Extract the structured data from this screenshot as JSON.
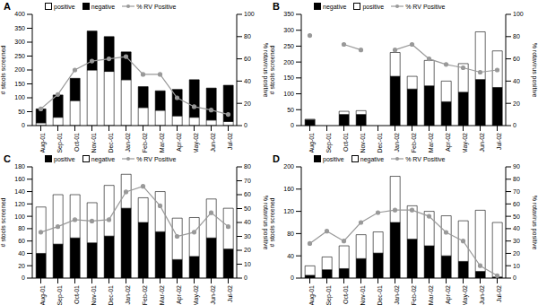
{
  "chart_data": [
    {
      "type": "bar",
      "title": "A",
      "stacked": true,
      "ylabel": "# stools screened",
      "y2label": "% rotavirus positive",
      "categories": [
        "Aug-01",
        "Sep-01",
        "Oct-01",
        "Nov-01",
        "Dec-01",
        "Jan-02",
        "Feb-02",
        "Mar-02",
        "Apr-02",
        "May-02",
        "Jun-02",
        "Jul-02"
      ],
      "ylim": [
        0,
        400
      ],
      "yticks": [
        0,
        50,
        100,
        150,
        200,
        250,
        300,
        350,
        400
      ],
      "y2lim": [
        0,
        100
      ],
      "y2ticks": [
        0,
        10,
        20,
        30,
        40,
        50,
        60,
        70,
        80,
        90,
        100
      ],
      "series": [
        {
          "name": "positive",
          "type": "bar",
          "color": "#ffffff",
          "values": [
            10,
            30,
            90,
            200,
            195,
            165,
            65,
            55,
            35,
            30,
            20,
            15
          ]
        },
        {
          "name": "negative",
          "type": "bar",
          "color": "#000000",
          "values": [
            50,
            80,
            80,
            140,
            125,
            100,
            75,
            70,
            95,
            135,
            115,
            130
          ]
        },
        {
          "name": "% RV Positive",
          "type": "line",
          "axis": "y2",
          "color": "#999999",
          "marker": "o",
          "values": [
            15,
            28,
            50,
            58,
            60,
            62,
            46,
            46,
            25,
            17,
            14,
            10
          ]
        }
      ]
    },
    {
      "type": "bar",
      "title": "B",
      "stacked": true,
      "ylabel": "# stools screened",
      "y2label": "% rotavirus positive",
      "categories": [
        "Aug-01",
        "Sep-01",
        "Oct-01",
        "Nov-01",
        "Dec-01",
        "Jan-02",
        "Feb-02",
        "Mar-02",
        "Apr-02",
        "May-02",
        "Jun-02",
        "Jul-02"
      ],
      "ylim": [
        0,
        350
      ],
      "yticks": [
        0,
        50,
        100,
        150,
        200,
        250,
        300,
        350
      ],
      "y2lim": [
        0,
        100
      ],
      "y2ticks": [
        0,
        10,
        20,
        30,
        40,
        50,
        60,
        70,
        80,
        90,
        100
      ],
      "series": [
        {
          "name": "negative",
          "type": "bar",
          "color": "#000000",
          "values": [
            18,
            null,
            35,
            35,
            null,
            155,
            115,
            125,
            75,
            105,
            145,
            120
          ]
        },
        {
          "name": "positive",
          "type": "bar",
          "color": "#ffffff",
          "values": [
            2,
            null,
            10,
            12,
            null,
            75,
            40,
            80,
            65,
            90,
            150,
            115
          ]
        },
        {
          "name": "% RV Positive",
          "type": "line",
          "axis": "y2",
          "color": "#999999",
          "marker": "o",
          "values": [
            81,
            null,
            73,
            68,
            null,
            68,
            73,
            60,
            55,
            52,
            48,
            50
          ]
        }
      ]
    },
    {
      "type": "bar",
      "title": "C",
      "stacked": true,
      "ylabel": "# stools screened",
      "y2label": "% rotavirus positive",
      "categories": [
        "Aug-01",
        "Sep-01",
        "Oct-01",
        "Nov-01",
        "Dec-01",
        "Jan-02",
        "Feb-02",
        "Mar-02",
        "Apr-02",
        "May-02",
        "Jun-02",
        "Jul-02"
      ],
      "ylim": [
        0,
        180
      ],
      "yticks": [
        0,
        20,
        40,
        60,
        80,
        100,
        120,
        140,
        160,
        180
      ],
      "y2lim": [
        0,
        80
      ],
      "y2ticks": [
        0,
        10,
        20,
        30,
        40,
        50,
        60,
        70,
        80
      ],
      "series": [
        {
          "name": "positive",
          "type": "bar",
          "color": "#000000",
          "values": [
            40,
            55,
            65,
            57,
            68,
            113,
            90,
            75,
            30,
            35,
            65,
            47
          ]
        },
        {
          "name": "negative",
          "type": "bar",
          "color": "#ffffff",
          "values": [
            75,
            80,
            70,
            65,
            82,
            55,
            40,
            65,
            67,
            63,
            63,
            66
          ]
        },
        {
          "name": "% RV Positive",
          "type": "line",
          "axis": "y2",
          "color": "#999999",
          "marker": "o",
          "values": [
            33,
            37,
            42,
            41,
            42,
            62,
            66,
            52,
            30,
            33,
            47,
            37
          ]
        }
      ]
    },
    {
      "type": "bar",
      "title": "D",
      "stacked": true,
      "ylabel": "# stools screened",
      "y2label": "% rotavirus positive",
      "categories": [
        "Aug-01",
        "Sep-01",
        "Oct-01",
        "Nov-01",
        "Dec-01",
        "Jan-02",
        "Feb-02",
        "Mar-02",
        "Apr-02",
        "May-02",
        "Jun-02",
        "Jul-02"
      ],
      "ylim": [
        0,
        200
      ],
      "yticks": [
        0,
        20,
        40,
        60,
        80,
        100,
        120,
        140,
        160,
        180,
        200
      ],
      "y2lim": [
        0,
        90
      ],
      "y2ticks": [
        0,
        10,
        20,
        30,
        40,
        50,
        60,
        70,
        80,
        90
      ],
      "series": [
        {
          "name": "positive",
          "type": "bar",
          "color": "#000000",
          "values": [
            5,
            15,
            17,
            35,
            45,
            100,
            70,
            58,
            40,
            30,
            12,
            2
          ]
        },
        {
          "name": "negative",
          "type": "bar",
          "color": "#ffffff",
          "values": [
            17,
            23,
            41,
            43,
            38,
            83,
            60,
            62,
            72,
            73,
            110,
            98
          ]
        },
        {
          "name": "% RV Positive",
          "type": "line",
          "axis": "y2",
          "color": "#999999",
          "marker": "o",
          "values": [
            28,
            38,
            30,
            45,
            53,
            55,
            55,
            50,
            37,
            30,
            10,
            2
          ]
        }
      ]
    }
  ]
}
